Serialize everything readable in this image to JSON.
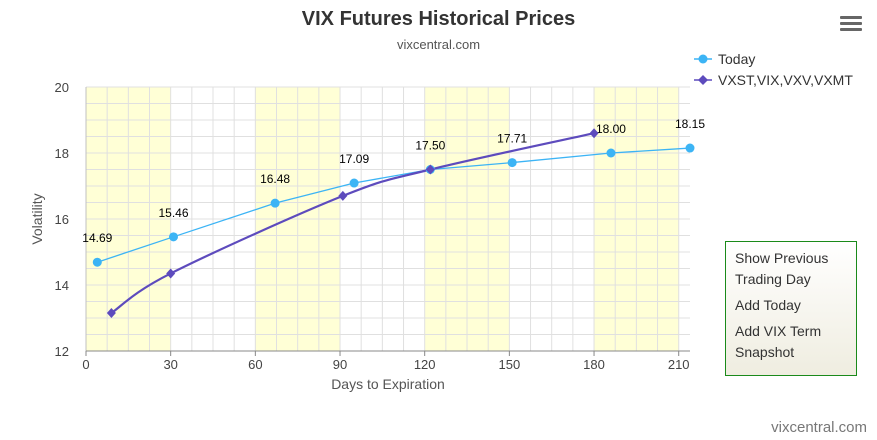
{
  "header": {
    "title": "VIX Futures Historical Prices",
    "subtitle": "vixcentral.com"
  },
  "menu": {
    "icon": "hamburger-menu-icon",
    "items": [
      "Show Previous Trading Day",
      "Add Today",
      "Add VIX Term Snapshot"
    ]
  },
  "footer": {
    "credit": "vixcentral.com"
  },
  "colors": {
    "today": "#3cb4f5",
    "term": "#5d4bbd",
    "band": "#ffffd6",
    "grid": "#e0e0e0",
    "menu_border": "#1a8a1a"
  },
  "chart_data": {
    "type": "line",
    "title": "VIX Futures Historical Prices",
    "subtitle": "vixcentral.com",
    "xlabel": "Days to Expiration",
    "ylabel": "Volatility",
    "xlim": [
      0,
      214
    ],
    "ylim": [
      12,
      20
    ],
    "x_ticks": [
      0,
      30,
      60,
      90,
      120,
      150,
      180,
      210
    ],
    "y_ticks": [
      12,
      14,
      16,
      18,
      20
    ],
    "bands": [
      [
        0,
        30
      ],
      [
        60,
        90
      ],
      [
        120,
        150
      ],
      [
        180,
        210
      ]
    ],
    "grid": true,
    "legend_position": "top-right",
    "series": [
      {
        "name": "Today",
        "marker": "circle",
        "x": [
          4,
          31,
          67,
          95,
          122,
          151,
          186,
          214
        ],
        "y": [
          14.69,
          15.46,
          16.48,
          17.09,
          17.5,
          17.71,
          18.0,
          18.15
        ],
        "labels": [
          "14.69",
          "15.46",
          "16.48",
          "17.09",
          "17.50",
          "17.71",
          "18.00",
          "18.15"
        ]
      },
      {
        "name": "VXST,VIX,VXV,VXMT",
        "marker": "diamond",
        "x": [
          9,
          30,
          91,
          122,
          180
        ],
        "y": [
          13.15,
          14.35,
          16.7,
          17.5,
          18.6
        ]
      }
    ]
  }
}
